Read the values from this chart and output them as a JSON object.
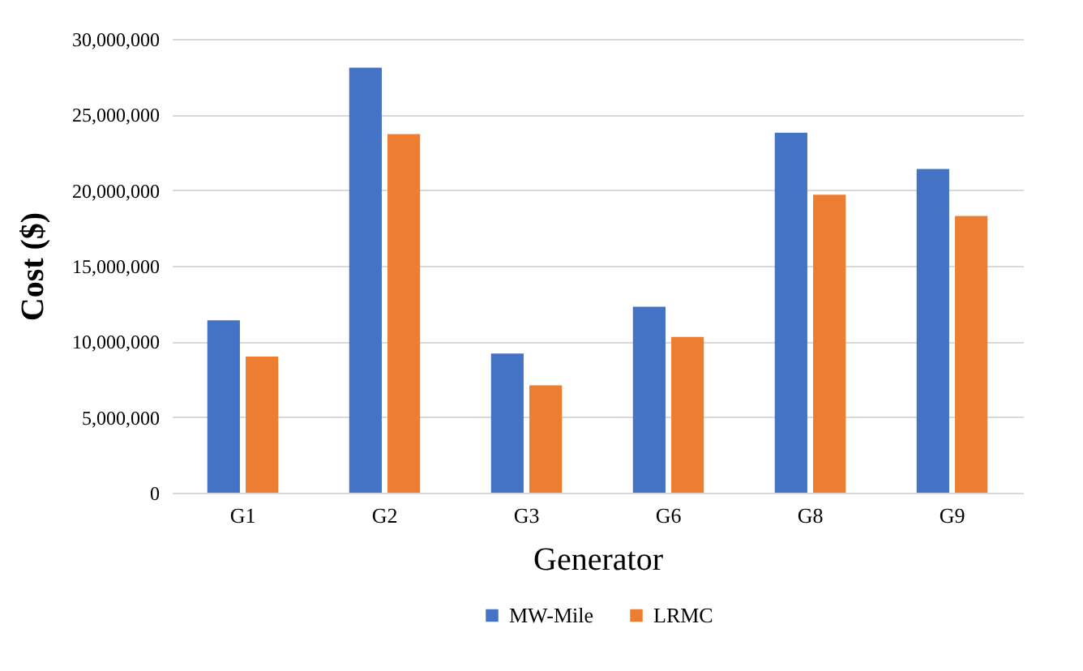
{
  "chart_data": {
    "type": "bar",
    "xlabel": "Generator",
    "ylabel": "Cost ($)",
    "categories": [
      "G1",
      "G2",
      "G3",
      "G6",
      "G8",
      "G9"
    ],
    "series": [
      {
        "name": "MW-Mile",
        "color": "#4472c4",
        "values": [
          11400000,
          28100000,
          9200000,
          12300000,
          23800000,
          21400000
        ]
      },
      {
        "name": "LRMC",
        "color": "#ed7d31",
        "values": [
          9000000,
          23700000,
          7100000,
          10300000,
          19700000,
          18300000
        ]
      }
    ],
    "ylim": [
      0,
      30000000
    ],
    "yticks": [
      0,
      {
        "value": 5000000,
        "label": "5,000,000"
      },
      {
        "value": 10000000,
        "label": "10,000,000"
      },
      {
        "value": 15000000,
        "label": "15,000,000"
      },
      {
        "value": 20000000,
        "label": "20,000,000"
      },
      {
        "value": 25000000,
        "label": "25,000,000"
      },
      {
        "value": 30000000,
        "label": "30,000,000"
      }
    ],
    "grid": "y",
    "legend": "bottom"
  }
}
